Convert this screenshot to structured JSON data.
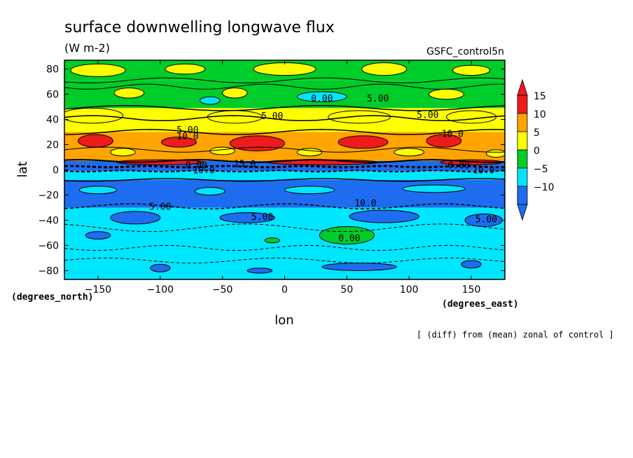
{
  "chart_data": {
    "type": "heatmap",
    "title": "surface downwelling longwave flux",
    "units": "(W m-2)",
    "dataset": "GSFC_control5n",
    "xlabel": "lon",
    "ylabel": "lat",
    "x_units": "(degrees_east)",
    "y_units": "(degrees_north)",
    "footnote": "[ (diff) from (mean) zonal of control ]",
    "xlim": [
      -177,
      177
    ],
    "ylim": [
      -87,
      87
    ],
    "x_ticks": [
      -150,
      -100,
      -50,
      0,
      50,
      100,
      150
    ],
    "y_ticks": [
      -80,
      -60,
      -40,
      -20,
      0,
      20,
      40,
      60,
      80
    ],
    "colorbar": {
      "labels": [
        "15",
        "10",
        "5",
        "0",
        "-5",
        "-10"
      ],
      "levels": [
        -10,
        -5,
        0,
        5,
        10,
        15
      ],
      "colors": [
        "#1e6cf0",
        "#00e6ff",
        "#00cc2a",
        "#ffff00",
        "#ffa400",
        "#ee1b1b"
      ]
    },
    "contour_labels": [
      {
        "text": "0.00",
        "lon": 30,
        "lat": 57
      },
      {
        "text": "5.00",
        "lon": 75,
        "lat": 57
      },
      {
        "text": "5.00",
        "lon": -10,
        "lat": 43
      },
      {
        "text": "5.00",
        "lon": 115,
        "lat": 44
      },
      {
        "text": "5.00",
        "lon": -78,
        "lat": 32
      },
      {
        "text": "10.0",
        "lon": -78,
        "lat": 27
      },
      {
        "text": "10.0",
        "lon": 135,
        "lat": 29
      },
      {
        "text": "15.0",
        "lon": -32,
        "lat": 5
      },
      {
        "text": "0.00",
        "lon": -71,
        "lat": 4
      },
      {
        "text": "0.00",
        "lon": 140,
        "lat": 4
      },
      {
        "text": "10.0",
        "lon": -65,
        "lat": 0
      },
      {
        "text": "10.0",
        "lon": 160,
        "lat": 0
      },
      {
        "text": "10.0",
        "lon": 65,
        "lat": -26
      },
      {
        "text": "5.00",
        "lon": -100,
        "lat": -29
      },
      {
        "text": "5.00",
        "lon": -18,
        "lat": -37
      },
      {
        "text": "5.00",
        "lon": 162,
        "lat": -39
      },
      {
        "text": "0.00",
        "lon": 52,
        "lat": -54
      }
    ]
  }
}
